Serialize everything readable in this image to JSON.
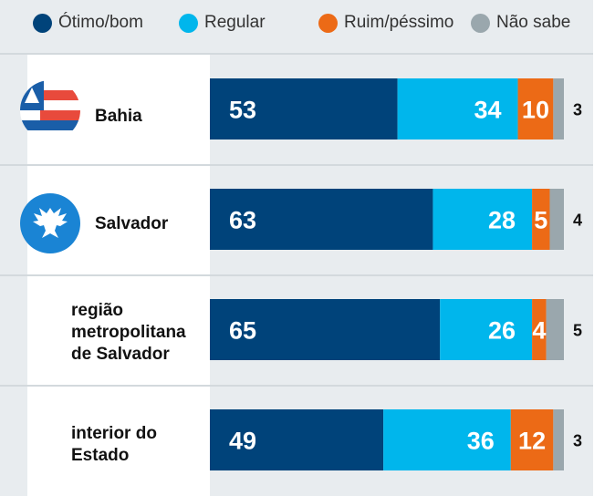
{
  "chart_data": {
    "type": "bar",
    "stacked": true,
    "orientation": "horizontal",
    "legend": [
      {
        "name": "Ótimo/bom",
        "color": "#00437a"
      },
      {
        "name": "Regular",
        "color": "#00b6ec"
      },
      {
        "name": "Ruim/péssimo",
        "color": "#ec6a16"
      },
      {
        "name": "Não sabe",
        "color": "#9aa7ad"
      }
    ],
    "categories": [
      "Bahia",
      "Salvador",
      "região metropolitana de Salvador",
      "interior do Estado"
    ],
    "category_lines": [
      [
        "Bahia"
      ],
      [
        "Salvador"
      ],
      [
        "região",
        "metropolitana",
        "de Salvador"
      ],
      [
        "interior do",
        "Estado"
      ]
    ],
    "series": [
      {
        "name": "Ótimo/bom",
        "values": [
          53,
          63,
          65,
          49
        ]
      },
      {
        "name": "Regular",
        "values": [
          34,
          28,
          26,
          36
        ]
      },
      {
        "name": "Ruim/péssimo",
        "values": [
          10,
          5,
          4,
          12
        ]
      },
      {
        "name": "Não sabe",
        "values": [
          3,
          4,
          5,
          3
        ]
      }
    ],
    "xlim": [
      0,
      100
    ]
  }
}
